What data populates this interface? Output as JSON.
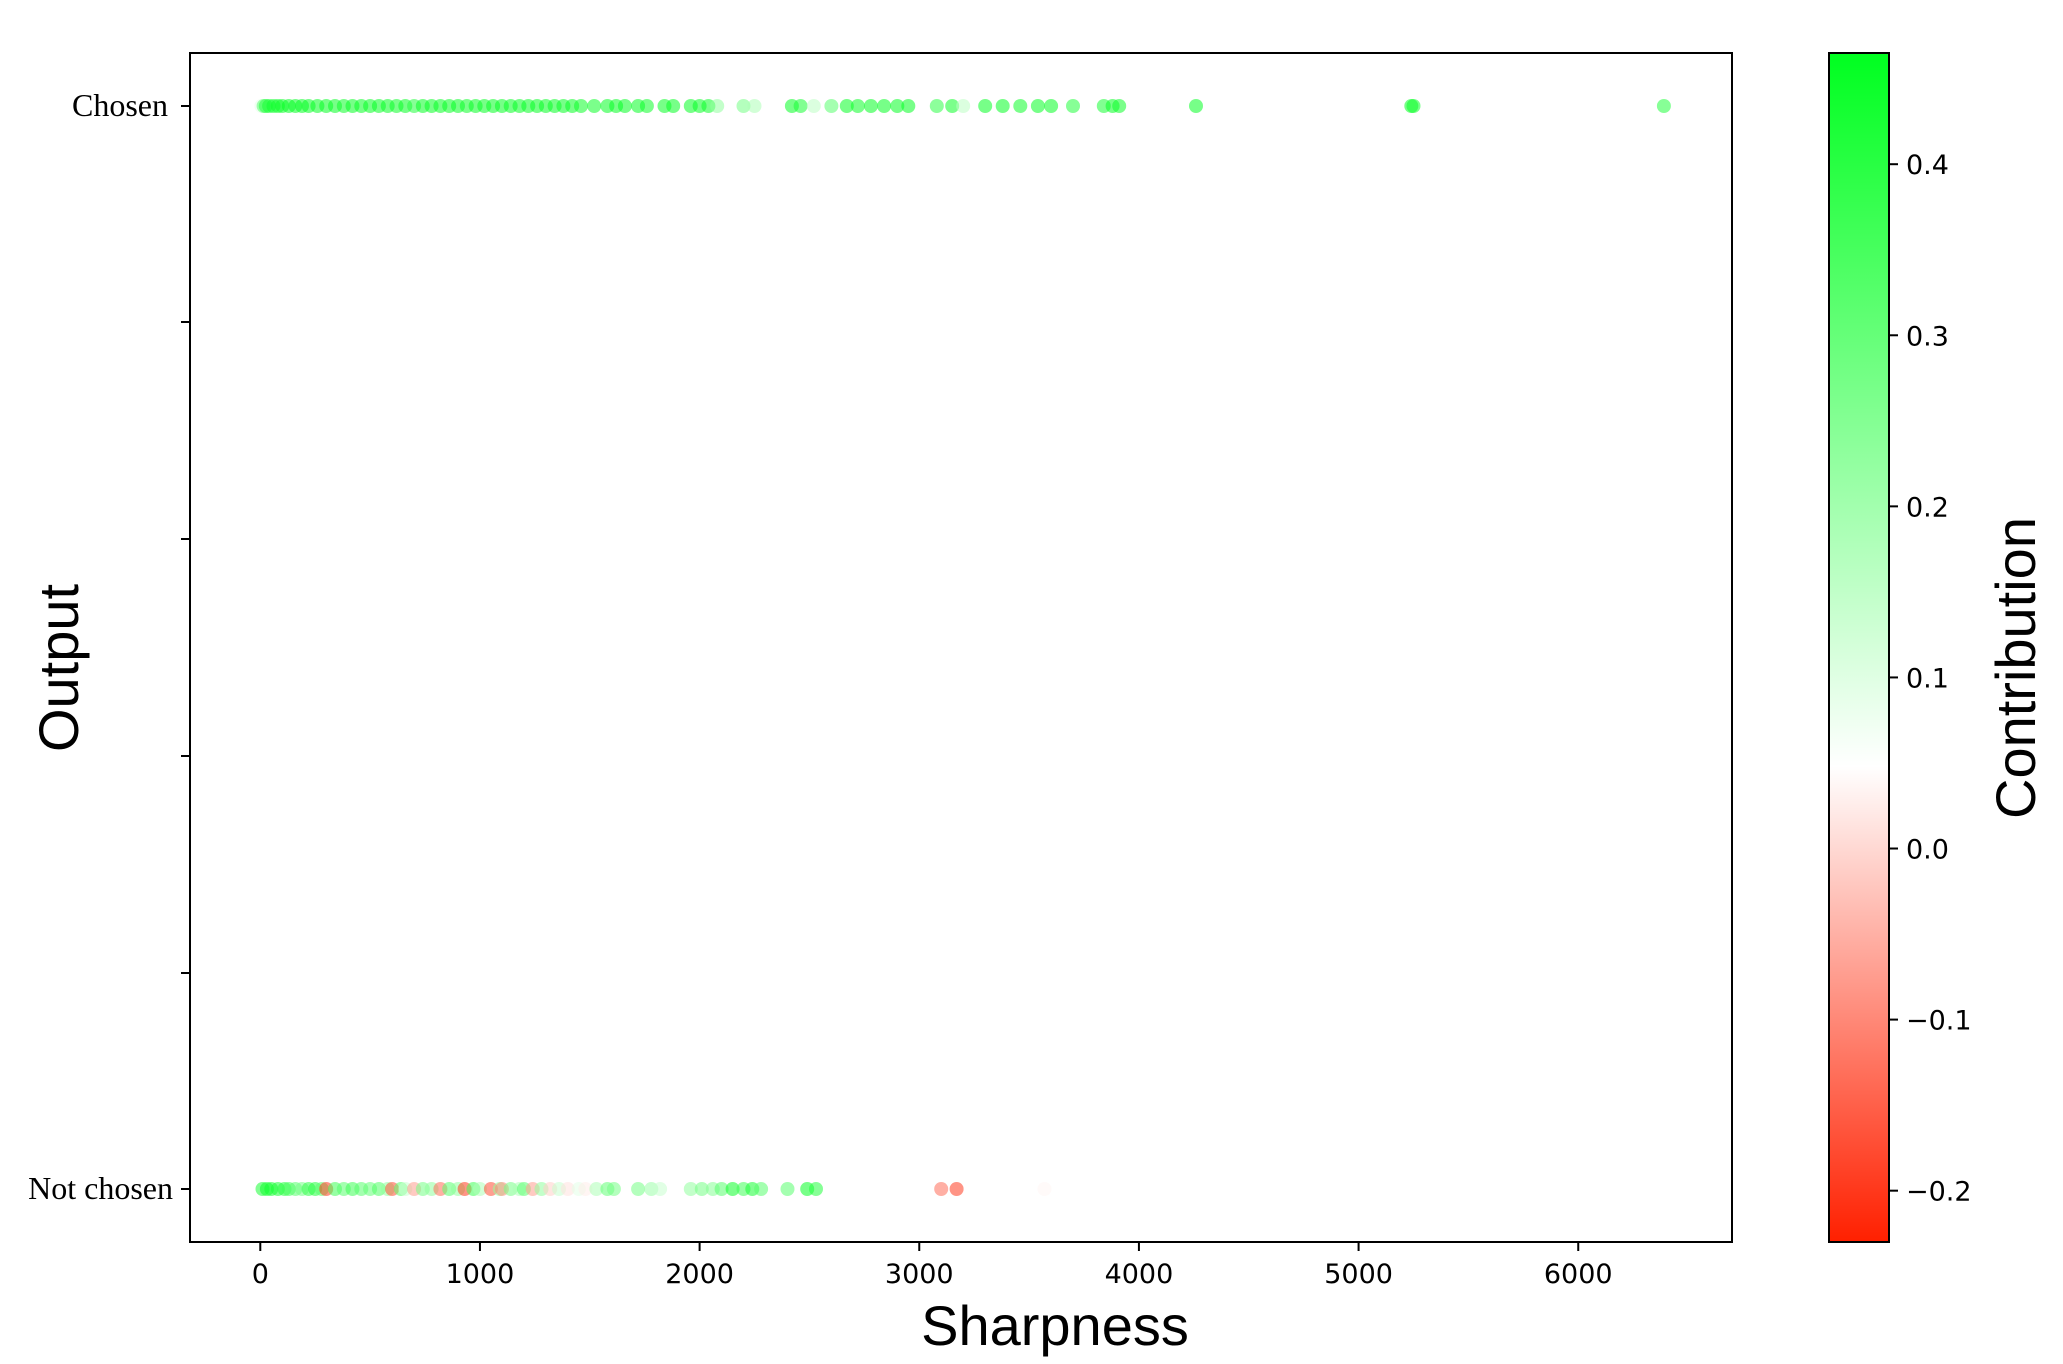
{
  "chart_data": {
    "type": "scatter",
    "xlabel": "Sharpness",
    "ylabel": "Output",
    "xlim": [
      -320,
      6700
    ],
    "x_ticks": [
      "0",
      "1000",
      "2000",
      "3000",
      "4000",
      "5000",
      "6000"
    ],
    "x_tick_values": [
      0,
      1000,
      2000,
      3000,
      4000,
      5000,
      6000
    ],
    "categories": [
      "Not chosen",
      "Chosen"
    ],
    "grid": false,
    "colorbar": {
      "label": "Contribution",
      "range": [
        -0.23,
        0.465
      ],
      "ticks": [
        "−0.2",
        "−0.1",
        "0.0",
        "0.1",
        "0.2",
        "0.3",
        "0.4"
      ],
      "tick_values": [
        -0.2,
        -0.1,
        0.0,
        0.1,
        0.2,
        0.3,
        0.4
      ],
      "colors": [
        "#ff2000",
        "#ffffff",
        "#00ff20"
      ]
    },
    "series": [
      {
        "category": "Chosen",
        "points": [
          [
            5,
            0.05
          ],
          [
            15,
            0.3
          ],
          [
            25,
            0.4
          ],
          [
            40,
            0.42
          ],
          [
            60,
            0.43
          ],
          [
            80,
            0.44
          ],
          [
            100,
            0.44
          ],
          [
            130,
            0.45
          ],
          [
            160,
            0.45
          ],
          [
            190,
            0.45
          ],
          [
            220,
            0.45
          ],
          [
            260,
            0.45
          ],
          [
            300,
            0.45
          ],
          [
            340,
            0.45
          ],
          [
            380,
            0.44
          ],
          [
            420,
            0.45
          ],
          [
            460,
            0.45
          ],
          [
            500,
            0.45
          ],
          [
            540,
            0.45
          ],
          [
            580,
            0.45
          ],
          [
            620,
            0.44
          ],
          [
            660,
            0.45
          ],
          [
            700,
            0.4
          ],
          [
            740,
            0.45
          ],
          [
            780,
            0.45
          ],
          [
            820,
            0.45
          ],
          [
            860,
            0.45
          ],
          [
            900,
            0.45
          ],
          [
            940,
            0.44
          ],
          [
            980,
            0.45
          ],
          [
            1020,
            0.45
          ],
          [
            1060,
            0.45
          ],
          [
            1100,
            0.45
          ],
          [
            1140,
            0.45
          ],
          [
            1180,
            0.45
          ],
          [
            1220,
            0.45
          ],
          [
            1260,
            0.45
          ],
          [
            1300,
            0.45
          ],
          [
            1340,
            0.45
          ],
          [
            1380,
            0.45
          ],
          [
            1420,
            0.45
          ],
          [
            1460,
            0.44
          ],
          [
            1520,
            0.44
          ],
          [
            1580,
            0.45
          ],
          [
            1620,
            0.45
          ],
          [
            1660,
            0.45
          ],
          [
            1720,
            0.45
          ],
          [
            1760,
            0.44
          ],
          [
            1840,
            0.45
          ],
          [
            1880,
            0.45
          ],
          [
            1960,
            0.45
          ],
          [
            2000,
            0.45
          ],
          [
            2040,
            0.44
          ],
          [
            2080,
            0.2
          ],
          [
            2200,
            0.25
          ],
          [
            2250,
            0.15
          ],
          [
            2420,
            0.45
          ],
          [
            2460,
            0.42
          ],
          [
            2520,
            0.12
          ],
          [
            2600,
            0.3
          ],
          [
            2670,
            0.45
          ],
          [
            2720,
            0.44
          ],
          [
            2780,
            0.45
          ],
          [
            2840,
            0.45
          ],
          [
            2900,
            0.45
          ],
          [
            2950,
            0.45
          ],
          [
            3080,
            0.38
          ],
          [
            3150,
            0.44
          ],
          [
            3200,
            0.12
          ],
          [
            3300,
            0.45
          ],
          [
            3380,
            0.45
          ],
          [
            3460,
            0.44
          ],
          [
            3540,
            0.45
          ],
          [
            3600,
            0.45
          ],
          [
            3700,
            0.4
          ],
          [
            3840,
            0.42
          ],
          [
            3880,
            0.45
          ],
          [
            3910,
            0.44
          ],
          [
            4260,
            0.45
          ],
          [
            5240,
            0.45
          ],
          [
            5250,
            0.44
          ],
          [
            6390,
            0.4
          ]
        ]
      },
      {
        "category": "Not chosen",
        "points": [
          [
            10,
            0.42
          ],
          [
            30,
            0.44
          ],
          [
            50,
            0.43
          ],
          [
            80,
            0.42
          ],
          [
            110,
            0.4
          ],
          [
            130,
            0.35
          ],
          [
            160,
            0.3
          ],
          [
            190,
            0.25
          ],
          [
            220,
            0.38
          ],
          [
            250,
            0.4
          ],
          [
            280,
            0.3
          ],
          [
            300,
            -0.2
          ],
          [
            340,
            0.35
          ],
          [
            380,
            0.3
          ],
          [
            420,
            0.35
          ],
          [
            460,
            0.3
          ],
          [
            500,
            0.28
          ],
          [
            540,
            0.32
          ],
          [
            580,
            0.2
          ],
          [
            600,
            -0.18
          ],
          [
            640,
            0.3
          ],
          [
            660,
            0.1
          ],
          [
            700,
            -0.1
          ],
          [
            740,
            0.25
          ],
          [
            780,
            0.2
          ],
          [
            820,
            -0.15
          ],
          [
            860,
            0.3
          ],
          [
            900,
            0.2
          ],
          [
            930,
            -0.2
          ],
          [
            970,
            0.35
          ],
          [
            1000,
            0.15
          ],
          [
            1050,
            -0.18
          ],
          [
            1090,
            0.2
          ],
          [
            1100,
            -0.12
          ],
          [
            1140,
            0.25
          ],
          [
            1180,
            0.15
          ],
          [
            1200,
            0.3
          ],
          [
            1240,
            -0.1
          ],
          [
            1280,
            0.2
          ],
          [
            1320,
            -0.05
          ],
          [
            1360,
            0.1
          ],
          [
            1400,
            -0.03
          ],
          [
            1450,
            0.05
          ],
          [
            1480,
            -0.02
          ],
          [
            1530,
            0.15
          ],
          [
            1580,
            0.28
          ],
          [
            1610,
            0.25
          ],
          [
            1720,
            0.25
          ],
          [
            1780,
            0.18
          ],
          [
            1820,
            0.1
          ],
          [
            1960,
            0.2
          ],
          [
            2010,
            0.25
          ],
          [
            2060,
            0.22
          ],
          [
            2100,
            0.3
          ],
          [
            2150,
            0.44
          ],
          [
            2200,
            0.35
          ],
          [
            2240,
            0.42
          ],
          [
            2280,
            0.3
          ],
          [
            2400,
            0.3
          ],
          [
            2490,
            0.45
          ],
          [
            2530,
            0.4
          ],
          [
            3100,
            -0.15
          ],
          [
            3170,
            -0.2
          ],
          [
            3570,
            -0.01
          ],
          [
            3660,
            0.0
          ]
        ]
      }
    ]
  }
}
